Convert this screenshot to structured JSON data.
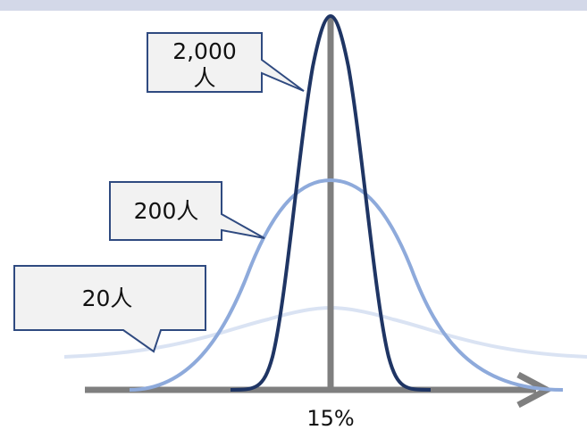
{
  "colors": {
    "top_band": "#d3d8e8",
    "axis": "#7f7f7f",
    "curve_2000": "#1f3564",
    "curve_200": "#8eaadb",
    "curve_20": "#dae3f3",
    "callout_fill": "#f2f2f2",
    "callout_stroke": "#2f4a80"
  },
  "center_label": "15%",
  "callouts": [
    {
      "id": "2000",
      "line1": "2,000",
      "line2": "人"
    },
    {
      "id": "200",
      "line1": "200人"
    },
    {
      "id": "20",
      "line1": "20人"
    }
  ],
  "chart_data": {
    "type": "line",
    "x_label": "15%",
    "series": [
      {
        "name": "2,000人",
        "relative_height": 1.0,
        "relative_width": 0.27
      },
      {
        "name": "200人",
        "relative_height": 0.56,
        "relative_width": 0.62
      },
      {
        "name": "20人",
        "relative_height": 0.22,
        "relative_width": 1.0
      }
    ]
  }
}
